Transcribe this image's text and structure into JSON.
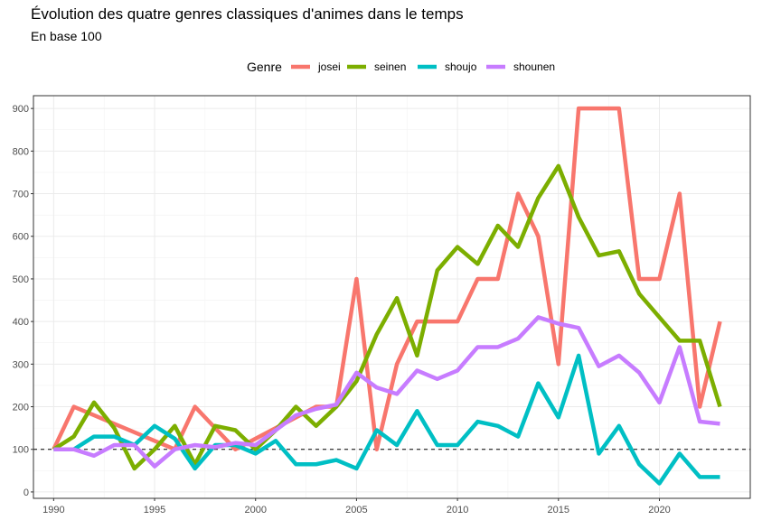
{
  "title": "Évolution des quatre genres classiques d'animes dans le temps",
  "subtitle": "En base 100",
  "legend_title": "Genre",
  "chart_data": {
    "type": "line",
    "title": "Évolution des quatre genres classiques d'animes dans le temps",
    "subtitle": "En base 100",
    "xlabel": "",
    "ylabel": "",
    "xlim": [
      1989,
      2024.5
    ],
    "ylim": [
      -15,
      930
    ],
    "x_ticks": [
      1990,
      1995,
      2000,
      2005,
      2010,
      2015,
      2020
    ],
    "y_ticks": [
      0,
      100,
      200,
      300,
      400,
      500,
      600,
      700,
      800,
      900
    ],
    "grid": true,
    "legend_position": "top",
    "reference_line": {
      "y": 100,
      "style": "dashed",
      "color": "#000000"
    },
    "x": [
      1990,
      1991,
      1992,
      1993,
      1994,
      1995,
      1996,
      1997,
      1998,
      1999,
      2000,
      2001,
      2002,
      2003,
      2004,
      2005,
      2006,
      2007,
      2008,
      2009,
      2010,
      2011,
      2012,
      2013,
      2014,
      2015,
      2016,
      2017,
      2018,
      2019,
      2020,
      2021,
      2022,
      2023
    ],
    "series": [
      {
        "name": "josei",
        "color": "#F8766D",
        "values": [
          100,
          200,
          180,
          160,
          140,
          120,
          100,
          200,
          150,
          100,
          125,
          150,
          175,
          200,
          200,
          500,
          100,
          300,
          400,
          400,
          400,
          500,
          500,
          700,
          600,
          300,
          900,
          900,
          900,
          500,
          500,
          700,
          200,
          400
        ]
      },
      {
        "name": "seinen",
        "color": "#7CAE00",
        "values": [
          100,
          130,
          210,
          150,
          55,
          100,
          155,
          65,
          155,
          145,
          100,
          145,
          200,
          155,
          200,
          260,
          370,
          455,
          320,
          520,
          575,
          535,
          625,
          575,
          690,
          765,
          645,
          555,
          565,
          465,
          410,
          355,
          355,
          200
        ]
      },
      {
        "name": "shoujo",
        "color": "#00BFC4",
        "values": [
          100,
          100,
          130,
          130,
          110,
          155,
          125,
          55,
          110,
          110,
          90,
          120,
          65,
          65,
          75,
          55,
          145,
          110,
          190,
          110,
          110,
          165,
          155,
          130,
          255,
          175,
          320,
          90,
          155,
          65,
          20,
          90,
          35,
          35
        ]
      },
      {
        "name": "shounen",
        "color": "#C77CFF",
        "values": [
          100,
          100,
          85,
          110,
          110,
          60,
          100,
          110,
          105,
          115,
          110,
          145,
          180,
          195,
          205,
          280,
          245,
          230,
          285,
          265,
          285,
          340,
          340,
          360,
          410,
          395,
          385,
          295,
          320,
          280,
          210,
          340,
          165,
          160
        ]
      }
    ]
  }
}
